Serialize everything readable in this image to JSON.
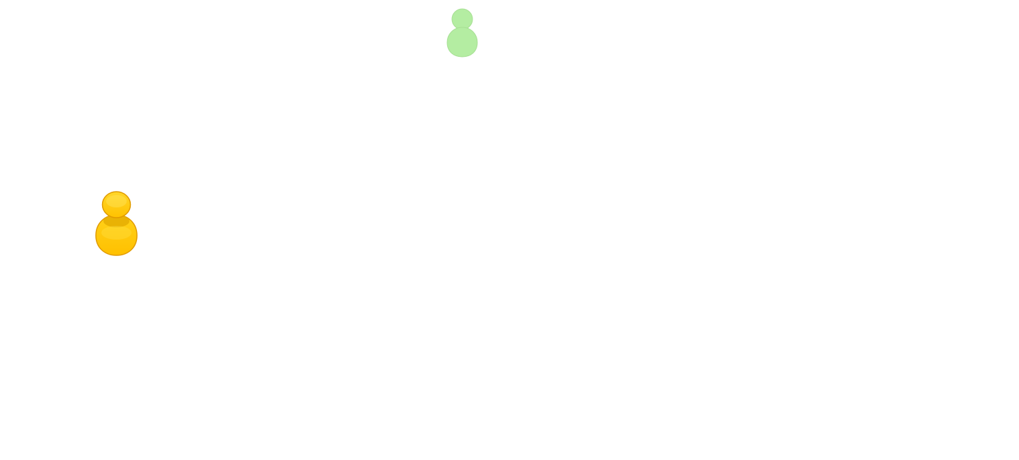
{
  "board": {
    "background": "#ffffff"
  },
  "pieces": [
    {
      "name": "green-pawn-icon",
      "color": "green",
      "fill": "#b4eda2",
      "stroke": "#a6df93",
      "style": "flat"
    },
    {
      "name": "yellow-pawn-icon",
      "color": "yellow",
      "fill": "#ffc800",
      "shade": "#e8a900",
      "stroke": "#e09a00",
      "style": "glossy"
    }
  ]
}
